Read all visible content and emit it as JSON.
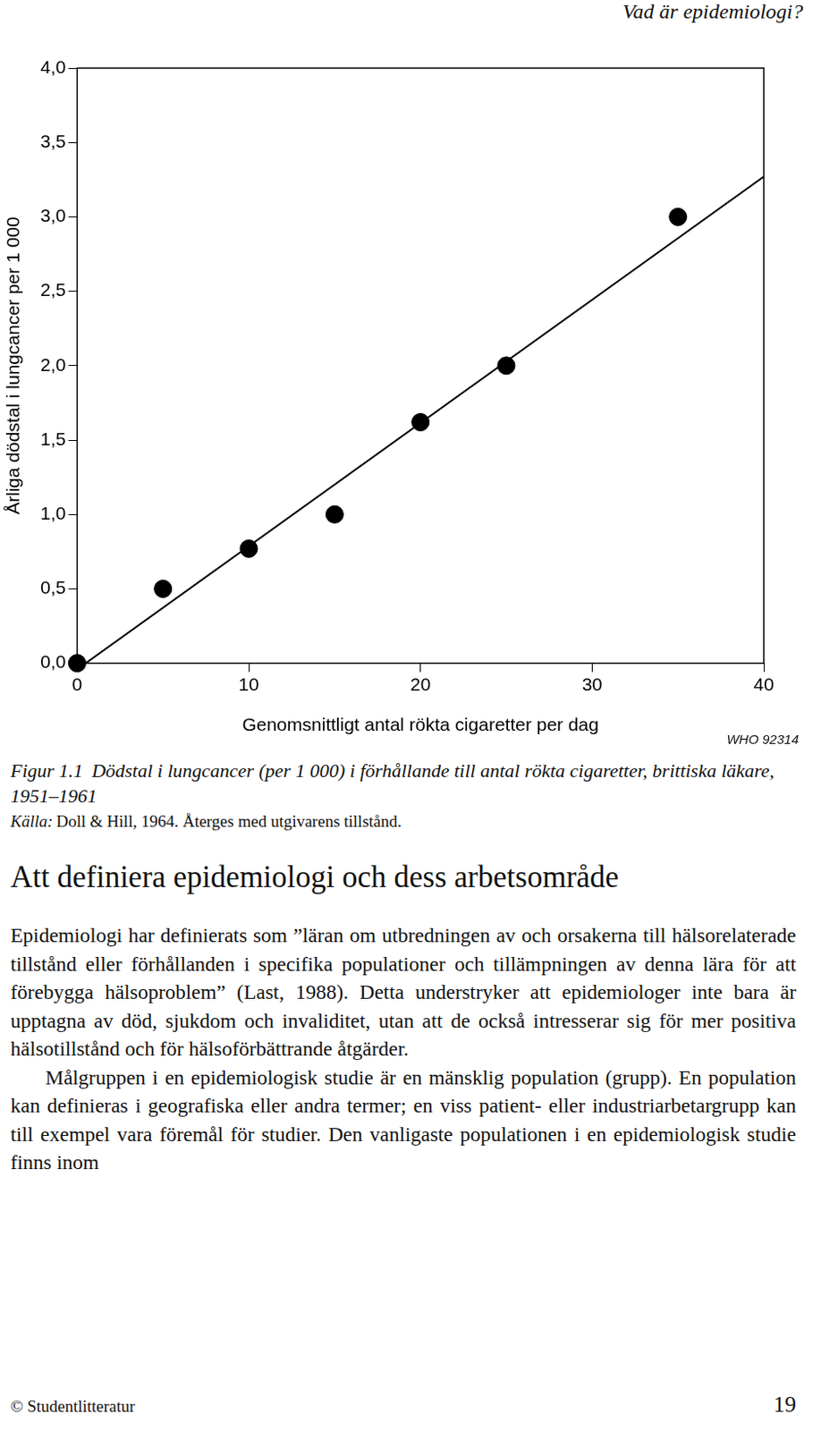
{
  "chart_data": {
    "type": "scatter",
    "x_label": "Genomsnittligt antal rökta cigaretter per dag",
    "y_label": "Årliga dödstal i lungcancer per 1 000",
    "xlim": [
      0,
      40
    ],
    "xticks": [
      0,
      10,
      20,
      30,
      40
    ],
    "ylim": [
      0,
      4
    ],
    "yticks": [
      {
        "value": 0,
        "label": "0,0"
      },
      {
        "value": 0.5,
        "label": "0,5"
      },
      {
        "value": 1,
        "label": "1,0"
      },
      {
        "value": 1.5,
        "label": "1,5"
      },
      {
        "value": 2,
        "label": "2,0"
      },
      {
        "value": 2.5,
        "label": "2,5"
      },
      {
        "value": 3,
        "label": "3,0"
      },
      {
        "value": 3.5,
        "label": "3,5"
      },
      {
        "value": 4,
        "label": "4,0"
      }
    ],
    "grid": false,
    "series": [
      {
        "type": "scatter",
        "color": "#000000",
        "marker": "circle",
        "x": [
          0,
          5,
          10,
          15,
          20,
          25,
          35
        ],
        "values": [
          0,
          0.5,
          0.77,
          1.0,
          1.62,
          2.0,
          3.0
        ]
      },
      {
        "type": "line",
        "color": "#000000",
        "line_style": "solid",
        "x": [
          0.5,
          40
        ],
        "values": [
          0,
          3.27
        ]
      }
    ]
  },
  "page": {
    "header": "Vad är epidemiologi?",
    "chart_code": "WHO 92314",
    "caption": {
      "label": "Figur 1.1",
      "text": "Dödstal i lungcancer (per 1 000) i förhållande till antal rökta cigaretter, brittiska läkare, 1951–1961"
    },
    "source": {
      "label": "Källa:",
      "text": "Doll & Hill, 1964. Återges med utgivarens tillstånd."
    },
    "heading": "Att definiera epidemiologi och dess arbetsområde",
    "paragraphs": [
      "Epidemiologi har definierats som ”läran om utbredningen av och orsakerna till hälsorelaterade tillstånd eller förhållanden i specifika populationer och tillämpningen av denna lära för att förebygga hälsoproblem” (Last, 1988). Detta understryker att epidemiologer inte bara är upptagna av död, sjukdom och invaliditet, utan att de också intresserar sig för mer positiva hälsotillstånd och för hälsoförbättrande åtgärder.",
      "Målgruppen i en epidemiologisk studie är en mänsklig population (grupp). En population kan definieras i geografiska eller andra termer; en viss patient- eller industriarbetargrupp kan till exempel vara föremål för studier. Den vanligaste populationen i en epidemiologisk studie finns inom"
    ],
    "footer": {
      "left": "© Studentlitteratur",
      "right": "19"
    }
  }
}
